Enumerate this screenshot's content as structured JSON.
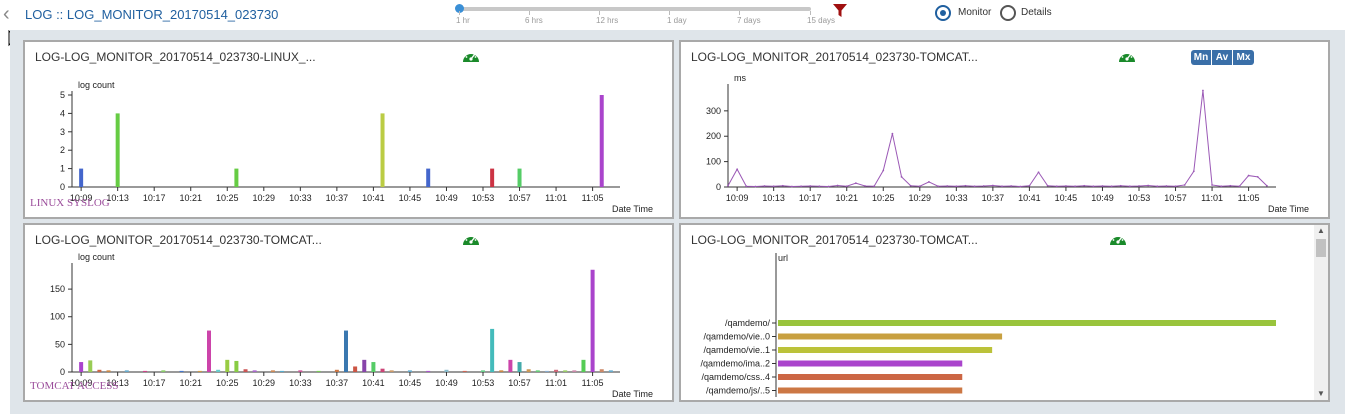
{
  "header": {
    "title": "LOG :: LOG_MONITOR_20170514_023730",
    "back_icon": "chevron-left-icon",
    "slider": {
      "ticks": [
        "1 hr",
        "6 hrs",
        "12 hrs",
        "1 day",
        "7 days",
        "15 days"
      ],
      "selected": "1 hr"
    },
    "filter_icon": "funnel-icon",
    "filter_color": "#a01010",
    "radios": [
      {
        "label": "Monitor",
        "selected": true
      },
      {
        "label": "Details",
        "selected": false
      }
    ]
  },
  "panels": [
    {
      "title": "LOG-LOG_MONITOR_20170514_023730-LINUX_...",
      "footer": "LINUX SYSLOG",
      "icon": "dashboard-gauge-icon"
    },
    {
      "title": "LOG-LOG_MONITOR_20170514_023730-TOMCAT...",
      "icon": "dashboard-gauge-icon",
      "mam_buttons": [
        "Mn",
        "Av",
        "Mx"
      ]
    },
    {
      "title": "LOG-LOG_MONITOR_20170514_023730-TOMCAT...",
      "footer": "TOMCAT ACCESS",
      "icon": "dashboard-gauge-icon"
    },
    {
      "title": "LOG-LOG_MONITOR_20170514_023730-TOMCAT...",
      "icon": "dashboard-gauge-icon"
    }
  ],
  "colors": {
    "accent": "#1f5f9f",
    "gauge": "#1a8a2a",
    "footer_text": "#9b4d9b",
    "line": "#9b59b6"
  },
  "chart_data": [
    {
      "type": "bar",
      "ylabel": "log count",
      "xlabel": "Date Time",
      "ylim": [
        0,
        5
      ],
      "yticks": [
        0,
        1,
        2,
        3,
        4,
        5
      ],
      "xlim": [
        10.15,
        11.12
      ],
      "xticks": [
        "10:09",
        "10:13",
        "10:17",
        "10:21",
        "10:25",
        "10:29",
        "10:33",
        "10:37",
        "10:41",
        "10:45",
        "10:49",
        "10:53",
        "10:57",
        "11:01",
        "11:05"
      ],
      "points": [
        {
          "t": "10:09",
          "v": 1,
          "color": "#4466cc"
        },
        {
          "t": "10:13",
          "v": 4,
          "color": "#66cc44"
        },
        {
          "t": "10:26",
          "v": 1,
          "color": "#66cc44"
        },
        {
          "t": "10:42",
          "v": 4,
          "color": "#bbcc44"
        },
        {
          "t": "10:47",
          "v": 1,
          "color": "#4466cc"
        },
        {
          "t": "10:54",
          "v": 1,
          "color": "#cc3344"
        },
        {
          "t": "10:57",
          "v": 1,
          "color": "#55cc66"
        },
        {
          "t": "11:06",
          "v": 5,
          "color": "#aa44cc"
        }
      ]
    },
    {
      "type": "line",
      "ylabel": "ms",
      "xlabel": "Date Time",
      "ylim": [
        0,
        390
      ],
      "yticks": [
        0,
        100,
        200,
        300
      ],
      "xticks": [
        "10:09",
        "10:13",
        "10:17",
        "10:21",
        "10:25",
        "10:29",
        "10:33",
        "10:37",
        "10:41",
        "10:45",
        "10:49",
        "10:53",
        "10:57",
        "11:01",
        "11:05"
      ],
      "x": [
        "10:08",
        "10:09",
        "10:10",
        "10:11",
        "10:12",
        "10:13",
        "10:14",
        "10:15",
        "10:16",
        "10:17",
        "10:18",
        "10:19",
        "10:20",
        "10:21",
        "10:22",
        "10:23",
        "10:24",
        "10:25",
        "10:26",
        "10:27",
        "10:28",
        "10:29",
        "10:30",
        "10:31",
        "10:32",
        "10:33",
        "10:34",
        "10:35",
        "10:36",
        "10:37",
        "10:38",
        "10:39",
        "10:40",
        "10:41",
        "10:42",
        "10:43",
        "10:44",
        "10:45",
        "10:46",
        "10:47",
        "10:48",
        "10:49",
        "10:50",
        "10:51",
        "10:52",
        "10:53",
        "10:54",
        "10:55",
        "10:56",
        "10:57",
        "10:58",
        "10:59",
        "11:00",
        "11:01",
        "11:02",
        "11:03",
        "11:04",
        "11:05",
        "11:06",
        "11:07"
      ],
      "y": [
        5,
        70,
        3,
        2,
        4,
        3,
        5,
        2,
        3,
        4,
        3,
        2,
        6,
        3,
        15,
        4,
        3,
        65,
        210,
        40,
        5,
        3,
        20,
        3,
        4,
        3,
        5,
        3,
        4,
        6,
        3,
        4,
        2,
        5,
        58,
        5,
        3,
        4,
        3,
        5,
        3,
        4,
        3,
        5,
        3,
        4,
        6,
        3,
        4,
        3,
        8,
        62,
        380,
        8,
        3,
        5,
        3,
        45,
        40,
        5
      ]
    },
    {
      "type": "bar",
      "ylabel": "log count",
      "xlabel": "Date Time",
      "ylim": [
        0,
        190
      ],
      "yticks": [
        0,
        50,
        100,
        150
      ],
      "xticks": [
        "10:09",
        "10:13",
        "10:17",
        "10:21",
        "10:25",
        "10:29",
        "10:33",
        "10:37",
        "10:41",
        "10:45",
        "10:49",
        "10:53",
        "10:57",
        "11:01",
        "11:05"
      ],
      "points": [
        {
          "t": "10:09",
          "v": 18,
          "color": "#aa44cc"
        },
        {
          "t": "10:10",
          "v": 21,
          "color": "#99cc55"
        },
        {
          "t": "10:11",
          "v": 4,
          "color": "#cc6644"
        },
        {
          "t": "10:12",
          "v": 3,
          "color": "#cc8844"
        },
        {
          "t": "10:14",
          "v": 3,
          "color": "#66aacc"
        },
        {
          "t": "10:16",
          "v": 2,
          "color": "#cc4488"
        },
        {
          "t": "10:18",
          "v": 3,
          "color": "#88cc66"
        },
        {
          "t": "10:20",
          "v": 2,
          "color": "#4477cc"
        },
        {
          "t": "10:22",
          "v": 2,
          "color": "#cc9944"
        },
        {
          "t": "10:23",
          "v": 75,
          "color": "#cc44aa"
        },
        {
          "t": "10:24",
          "v": 4,
          "color": "#66cccc"
        },
        {
          "t": "10:25",
          "v": 22,
          "color": "#99cc44"
        },
        {
          "t": "10:26",
          "v": 20,
          "color": "#88cc44"
        },
        {
          "t": "10:27",
          "v": 5,
          "color": "#cc5555"
        },
        {
          "t": "10:28",
          "v": 3,
          "color": "#aa66cc"
        },
        {
          "t": "10:30",
          "v": 3,
          "color": "#cc8855"
        },
        {
          "t": "10:31",
          "v": 2,
          "color": "#55aacc"
        },
        {
          "t": "10:33",
          "v": 3,
          "color": "#cc5599"
        },
        {
          "t": "10:35",
          "v": 2,
          "color": "#77cc55"
        },
        {
          "t": "10:37",
          "v": 4,
          "color": "#cc7744"
        },
        {
          "t": "10:38",
          "v": 75,
          "color": "#3a78b0"
        },
        {
          "t": "10:39",
          "v": 10,
          "color": "#cc5544"
        },
        {
          "t": "10:40",
          "v": 22,
          "color": "#8844aa"
        },
        {
          "t": "10:41",
          "v": 18,
          "color": "#55cc66"
        },
        {
          "t": "10:42",
          "v": 6,
          "color": "#cc4477"
        },
        {
          "t": "10:43",
          "v": 3,
          "color": "#cc9966"
        },
        {
          "t": "10:45",
          "v": 3,
          "color": "#66aacc"
        },
        {
          "t": "10:47",
          "v": 2,
          "color": "#aa55cc"
        },
        {
          "t": "10:49",
          "v": 4,
          "color": "#88bbcc"
        },
        {
          "t": "10:51",
          "v": 2,
          "color": "#cc6655"
        },
        {
          "t": "10:53",
          "v": 3,
          "color": "#66cc88"
        },
        {
          "t": "10:54",
          "v": 78,
          "color": "#44bbbb"
        },
        {
          "t": "10:55",
          "v": 3,
          "color": "#cc8844"
        },
        {
          "t": "10:56",
          "v": 22,
          "color": "#cc44aa"
        },
        {
          "t": "10:57",
          "v": 18,
          "color": "#44aaaa"
        },
        {
          "t": "10:58",
          "v": 5,
          "color": "#cc9955"
        },
        {
          "t": "10:59",
          "v": 3,
          "color": "#66cc77"
        },
        {
          "t": "11:00",
          "v": 2,
          "color": "#88aacc"
        },
        {
          "t": "11:01",
          "v": 4,
          "color": "#cc6677"
        },
        {
          "t": "11:02",
          "v": 3,
          "color": "#99cc66"
        },
        {
          "t": "11:03",
          "v": 3,
          "color": "#cc88aa"
        },
        {
          "t": "11:04",
          "v": 22,
          "color": "#55cc55"
        },
        {
          "t": "11:05",
          "v": 185,
          "color": "#aa44cc"
        },
        {
          "t": "11:06",
          "v": 5,
          "color": "#cc8866"
        },
        {
          "t": "11:07",
          "v": 3,
          "color": "#66aacc"
        }
      ]
    },
    {
      "type": "bar",
      "orientation": "horizontal",
      "ylabel": "url",
      "categories": [
        "/qamdemo/",
        "/qamdemo/vie..0",
        "/qamdemo/vie..1",
        "/qamdemo/ima..2",
        "/qamdemo/css..4",
        "/qamdemo/js/..5"
      ],
      "values": [
        100,
        45,
        43,
        37,
        37,
        37
      ],
      "colors": [
        "#99c43c",
        "#c8a040",
        "#bbc23a",
        "#aa44cc",
        "#cc6644",
        "#cc7744"
      ]
    }
  ]
}
